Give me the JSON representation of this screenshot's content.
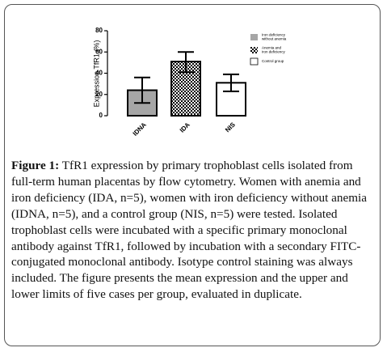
{
  "chart_data": {
    "type": "bar",
    "y_label": "Expression TfR1 (%)",
    "categories": [
      "IDNA",
      "IDA",
      "NIS"
    ],
    "values": [
      24,
      51,
      31
    ],
    "lower": [
      12,
      41,
      23
    ],
    "upper": [
      36,
      60,
      39
    ],
    "colors": [
      "#a6a6a6",
      "checkered",
      "#ffffff"
    ],
    "legend": [
      [
        "Iron deficiency",
        "without anemia"
      ],
      [
        "Anemia and",
        "iron deficiency"
      ],
      [
        "Control group"
      ]
    ],
    "ylim": [
      0,
      80
    ],
    "yticks": [
      0,
      20,
      40,
      60,
      80
    ],
    "grid": false
  },
  "caption": {
    "label": "Figure 1:",
    "text": "TfR1 expression by primary trophoblast cells isolated from full-term human placentas by flow cytometry. Women with anemia and iron deficiency (IDA, n=5), women with iron deficiency without anemia (IDNA, n=5), and a control group (NIS, n=5) were tested. Isolated trophoblast cells were incubated with a specific primary monoclonal antibody against TfR1, followed by incubation with a secondary FITC-conjugated monoclonal antibody. Isotype control staining was always included. The figure presents the mean expression and the upper and lower limits of five cases per group, evaluated in duplicate."
  }
}
